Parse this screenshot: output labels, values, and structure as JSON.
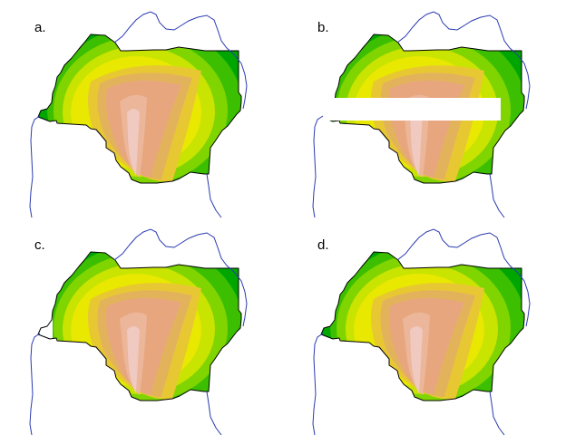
{
  "panels": [
    {
      "label": "a.",
      "variant": "full"
    },
    {
      "label": "b.",
      "variant": "horizontal-gap"
    },
    {
      "label": "c.",
      "variant": "clipped-west"
    },
    {
      "label": "d.",
      "variant": "full"
    }
  ],
  "colors": {
    "coastline": "#2b3bb0",
    "outline": "#000000",
    "gap": "#ffffff",
    "palette": [
      "#00a600",
      "#3bbf00",
      "#80d400",
      "#c8e400",
      "#e8e800",
      "#e8c832",
      "#e3b35c",
      "#e7a67e",
      "#ebb69a",
      "#f0c9c0"
    ]
  }
}
